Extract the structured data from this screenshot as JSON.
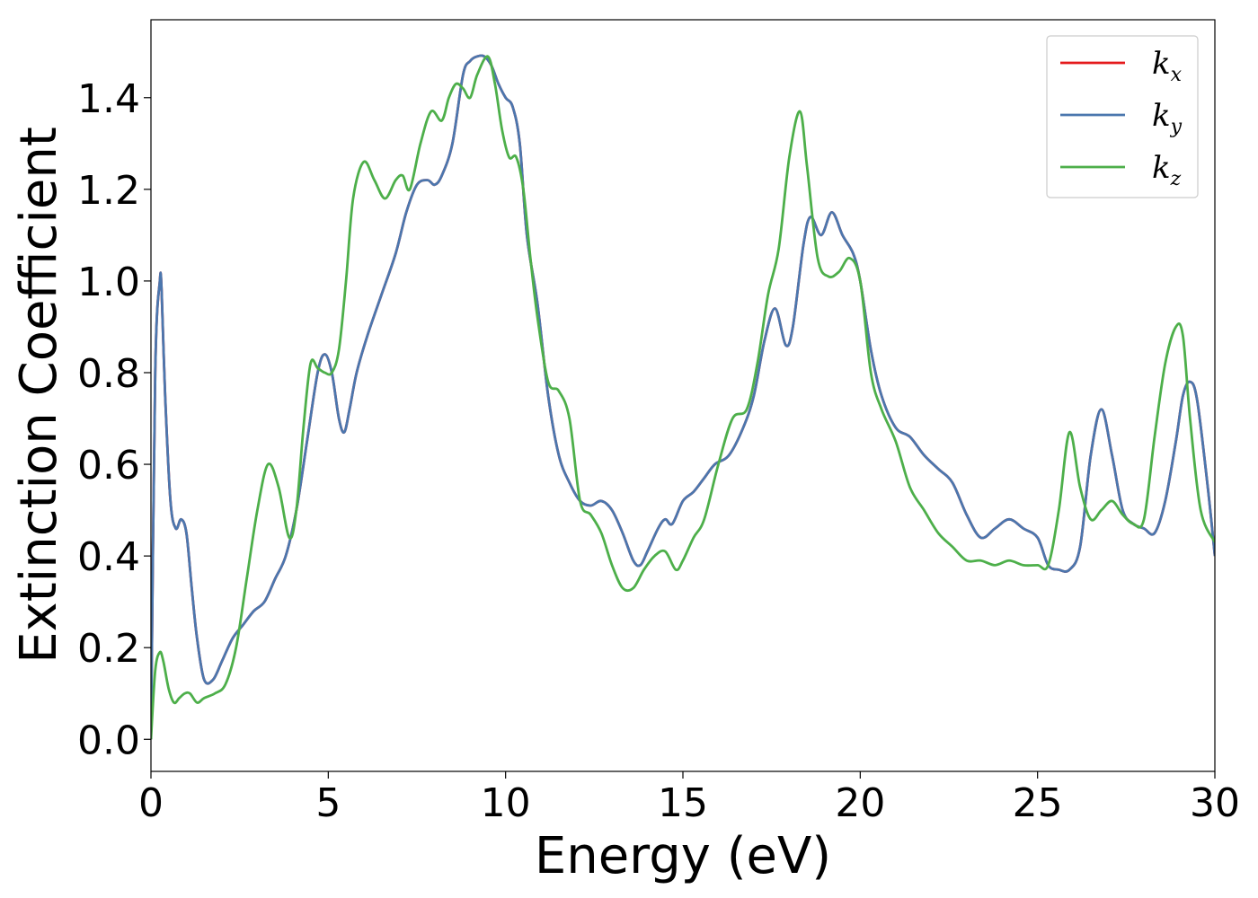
{
  "chart_data": {
    "type": "line",
    "title": "",
    "xlabel": "Energy (eV)",
    "ylabel": "Extinction Coefficient",
    "xlim": [
      0,
      30
    ],
    "ylim": [
      -0.07,
      1.57
    ],
    "xticks": [
      0,
      5,
      10,
      15,
      20,
      25,
      30
    ],
    "xtick_labels": [
      "0",
      "5",
      "10",
      "15",
      "20",
      "25",
      "30"
    ],
    "yticks": [
      0.0,
      0.2,
      0.4,
      0.6,
      0.8,
      1.0,
      1.2,
      1.4
    ],
    "ytick_labels": [
      "0.0",
      "0.2",
      "0.4",
      "0.6",
      "0.8",
      "1.0",
      "1.2",
      "1.4"
    ],
    "grid": false,
    "legend_position": "top-right",
    "series": [
      {
        "name": "k_x",
        "label_base": "k",
        "label_sub": "x",
        "color": "#e41a1c",
        "x": [
          0,
          0.12,
          0.25,
          0.3,
          0.4,
          0.55,
          0.7,
          0.85,
          1.0,
          1.15,
          1.3,
          1.5,
          1.75,
          2.0,
          2.3,
          2.6,
          2.9,
          3.2,
          3.5,
          3.8,
          4.1,
          4.4,
          4.7,
          4.9,
          5.1,
          5.3,
          5.45,
          5.6,
          5.8,
          6.1,
          6.5,
          6.9,
          7.2,
          7.5,
          7.8,
          8.0,
          8.2,
          8.5,
          8.8,
          9.0,
          9.2,
          9.4,
          9.6,
          9.8,
          10.0,
          10.2,
          10.4,
          10.6,
          10.9,
          11.2,
          11.5,
          11.8,
          12.1,
          12.4,
          12.7,
          13.0,
          13.3,
          13.6,
          13.8,
          14.0,
          14.3,
          14.5,
          14.7,
          15.0,
          15.3,
          15.6,
          15.9,
          16.3,
          16.7,
          17.0,
          17.3,
          17.6,
          17.9,
          18.1,
          18.4,
          18.6,
          18.9,
          19.2,
          19.5,
          19.8,
          20.0,
          20.3,
          20.6,
          21.0,
          21.4,
          21.8,
          22.2,
          22.6,
          23.0,
          23.4,
          23.8,
          24.2,
          24.6,
          25.0,
          25.3,
          25.6,
          25.9,
          26.2,
          26.5,
          26.8,
          27.1,
          27.4,
          27.7,
          28.0,
          28.3,
          28.6,
          28.9,
          29.1,
          29.3,
          29.5,
          29.8,
          30.0
        ],
        "values": [
          0.0,
          0.8,
          1.0,
          0.98,
          0.75,
          0.52,
          0.46,
          0.48,
          0.45,
          0.33,
          0.22,
          0.13,
          0.13,
          0.17,
          0.22,
          0.25,
          0.28,
          0.3,
          0.35,
          0.4,
          0.5,
          0.65,
          0.8,
          0.84,
          0.8,
          0.7,
          0.67,
          0.72,
          0.8,
          0.88,
          0.97,
          1.06,
          1.15,
          1.21,
          1.22,
          1.21,
          1.23,
          1.3,
          1.45,
          1.48,
          1.49,
          1.49,
          1.47,
          1.43,
          1.4,
          1.38,
          1.3,
          1.1,
          0.95,
          0.75,
          0.62,
          0.56,
          0.52,
          0.51,
          0.52,
          0.5,
          0.45,
          0.39,
          0.38,
          0.41,
          0.46,
          0.48,
          0.47,
          0.52,
          0.54,
          0.57,
          0.6,
          0.62,
          0.68,
          0.75,
          0.87,
          0.94,
          0.86,
          0.9,
          1.08,
          1.14,
          1.1,
          1.15,
          1.1,
          1.06,
          1.0,
          0.85,
          0.75,
          0.68,
          0.66,
          0.62,
          0.59,
          0.56,
          0.49,
          0.44,
          0.46,
          0.48,
          0.46,
          0.44,
          0.38,
          0.37,
          0.37,
          0.42,
          0.62,
          0.72,
          0.62,
          0.5,
          0.47,
          0.46,
          0.45,
          0.52,
          0.65,
          0.75,
          0.78,
          0.74,
          0.55,
          0.4
        ]
      },
      {
        "name": "k_y",
        "label_base": "k",
        "label_sub": "y",
        "color": "#4b77ae",
        "x": [
          0,
          0.12,
          0.25,
          0.3,
          0.4,
          0.55,
          0.7,
          0.85,
          1.0,
          1.15,
          1.3,
          1.5,
          1.75,
          2.0,
          2.3,
          2.6,
          2.9,
          3.2,
          3.5,
          3.8,
          4.1,
          4.4,
          4.7,
          4.9,
          5.1,
          5.3,
          5.45,
          5.6,
          5.8,
          6.1,
          6.5,
          6.9,
          7.2,
          7.5,
          7.8,
          8.0,
          8.2,
          8.5,
          8.8,
          9.0,
          9.2,
          9.4,
          9.6,
          9.8,
          10.0,
          10.2,
          10.4,
          10.6,
          10.9,
          11.2,
          11.5,
          11.8,
          12.1,
          12.4,
          12.7,
          13.0,
          13.3,
          13.6,
          13.8,
          14.0,
          14.3,
          14.5,
          14.7,
          15.0,
          15.3,
          15.6,
          15.9,
          16.3,
          16.7,
          17.0,
          17.3,
          17.6,
          17.9,
          18.1,
          18.4,
          18.6,
          18.9,
          19.2,
          19.5,
          19.8,
          20.0,
          20.3,
          20.6,
          21.0,
          21.4,
          21.8,
          22.2,
          22.6,
          23.0,
          23.4,
          23.8,
          24.2,
          24.6,
          25.0,
          25.3,
          25.6,
          25.9,
          26.2,
          26.5,
          26.8,
          27.1,
          27.4,
          27.7,
          28.0,
          28.3,
          28.6,
          28.9,
          29.1,
          29.3,
          29.5,
          29.8,
          30.0
        ],
        "values": [
          0.0,
          0.8,
          1.0,
          0.98,
          0.75,
          0.52,
          0.46,
          0.48,
          0.45,
          0.33,
          0.22,
          0.13,
          0.13,
          0.17,
          0.22,
          0.25,
          0.28,
          0.3,
          0.35,
          0.4,
          0.5,
          0.65,
          0.8,
          0.84,
          0.8,
          0.7,
          0.67,
          0.72,
          0.8,
          0.88,
          0.97,
          1.06,
          1.15,
          1.21,
          1.22,
          1.21,
          1.23,
          1.3,
          1.45,
          1.48,
          1.49,
          1.49,
          1.47,
          1.43,
          1.4,
          1.38,
          1.3,
          1.1,
          0.95,
          0.75,
          0.62,
          0.56,
          0.52,
          0.51,
          0.52,
          0.5,
          0.45,
          0.39,
          0.38,
          0.41,
          0.46,
          0.48,
          0.47,
          0.52,
          0.54,
          0.57,
          0.6,
          0.62,
          0.68,
          0.75,
          0.87,
          0.94,
          0.86,
          0.9,
          1.08,
          1.14,
          1.1,
          1.15,
          1.1,
          1.06,
          1.0,
          0.85,
          0.75,
          0.68,
          0.66,
          0.62,
          0.59,
          0.56,
          0.49,
          0.44,
          0.46,
          0.48,
          0.46,
          0.44,
          0.38,
          0.37,
          0.37,
          0.42,
          0.62,
          0.72,
          0.62,
          0.5,
          0.47,
          0.46,
          0.45,
          0.52,
          0.65,
          0.75,
          0.78,
          0.74,
          0.55,
          0.4
        ]
      },
      {
        "name": "k_z",
        "label_base": "k",
        "label_sub": "z",
        "color": "#4daf4a",
        "x": [
          0,
          0.12,
          0.25,
          0.35,
          0.5,
          0.65,
          0.8,
          0.95,
          1.1,
          1.3,
          1.5,
          1.8,
          2.1,
          2.4,
          2.7,
          3.0,
          3.3,
          3.6,
          3.9,
          4.1,
          4.3,
          4.5,
          4.7,
          4.9,
          5.1,
          5.3,
          5.5,
          5.7,
          6.0,
          6.3,
          6.6,
          6.9,
          7.1,
          7.3,
          7.6,
          7.9,
          8.2,
          8.4,
          8.6,
          8.8,
          9.0,
          9.2,
          9.5,
          9.7,
          9.9,
          10.1,
          10.3,
          10.5,
          10.7,
          10.9,
          11.2,
          11.5,
          11.8,
          12.1,
          12.4,
          12.7,
          13.0,
          13.3,
          13.6,
          13.9,
          14.2,
          14.5,
          14.8,
          15.0,
          15.3,
          15.6,
          16.0,
          16.4,
          16.8,
          17.1,
          17.4,
          17.7,
          18.0,
          18.3,
          18.5,
          18.8,
          19.1,
          19.4,
          19.7,
          20.0,
          20.3,
          20.6,
          21.0,
          21.4,
          21.8,
          22.2,
          22.6,
          23.0,
          23.4,
          23.8,
          24.2,
          24.6,
          25.0,
          25.3,
          25.6,
          25.9,
          26.2,
          26.5,
          26.8,
          27.1,
          27.4,
          27.7,
          28.0,
          28.3,
          28.6,
          28.9,
          29.1,
          29.3,
          29.6,
          30.0
        ],
        "values": [
          0.0,
          0.15,
          0.19,
          0.17,
          0.11,
          0.08,
          0.09,
          0.1,
          0.1,
          0.08,
          0.09,
          0.1,
          0.12,
          0.2,
          0.35,
          0.5,
          0.6,
          0.55,
          0.44,
          0.5,
          0.68,
          0.82,
          0.81,
          0.8,
          0.8,
          0.85,
          1.0,
          1.18,
          1.26,
          1.22,
          1.18,
          1.22,
          1.23,
          1.2,
          1.3,
          1.37,
          1.35,
          1.4,
          1.43,
          1.42,
          1.4,
          1.45,
          1.49,
          1.43,
          1.33,
          1.27,
          1.27,
          1.2,
          1.05,
          0.92,
          0.78,
          0.76,
          0.7,
          0.52,
          0.49,
          0.45,
          0.38,
          0.33,
          0.33,
          0.37,
          0.4,
          0.41,
          0.37,
          0.39,
          0.44,
          0.48,
          0.6,
          0.7,
          0.72,
          0.82,
          0.97,
          1.07,
          1.27,
          1.37,
          1.25,
          1.05,
          1.01,
          1.02,
          1.05,
          1.0,
          0.8,
          0.72,
          0.65,
          0.55,
          0.5,
          0.45,
          0.42,
          0.39,
          0.39,
          0.38,
          0.39,
          0.38,
          0.38,
          0.38,
          0.5,
          0.67,
          0.55,
          0.48,
          0.5,
          0.52,
          0.49,
          0.47,
          0.48,
          0.66,
          0.82,
          0.9,
          0.88,
          0.7,
          0.5,
          0.43
        ]
      }
    ]
  }
}
